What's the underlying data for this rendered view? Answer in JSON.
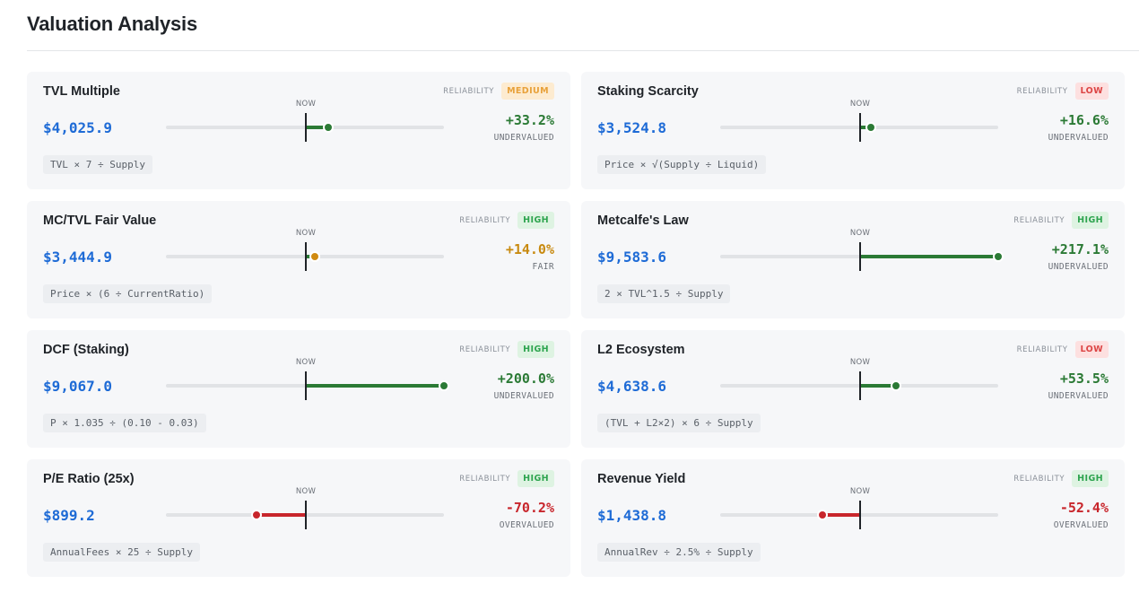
{
  "header": {
    "title": "Valuation Analysis"
  },
  "labels": {
    "reliability": "RELIABILITY",
    "now": "NOW"
  },
  "cards": [
    {
      "title": "TVL Multiple",
      "reliability": "MEDIUM",
      "reliability_level": "medium",
      "price": "$4,025.9",
      "change": "+33.2%",
      "verdict": "UNDERVALUED",
      "tone": "green",
      "change_value": 33.2,
      "formula": "TVL × 7 ÷ Supply"
    },
    {
      "title": "Staking Scarcity",
      "reliability": "LOW",
      "reliability_level": "low",
      "price": "$3,524.8",
      "change": "+16.6%",
      "verdict": "UNDERVALUED",
      "tone": "green",
      "change_value": 16.6,
      "formula": "Price × √(Supply ÷ Liquid)"
    },
    {
      "title": "MC/TVL Fair Value",
      "reliability": "HIGH",
      "reliability_level": "high",
      "price": "$3,444.9",
      "change": "+14.0%",
      "verdict": "FAIR",
      "tone": "amber",
      "change_value": 14.0,
      "formula": "Price × (6 ÷ CurrentRatio)"
    },
    {
      "title": "Metcalfe's Law",
      "reliability": "HIGH",
      "reliability_level": "high",
      "price": "$9,583.6",
      "change": "+217.1%",
      "verdict": "UNDERVALUED",
      "tone": "green",
      "change_value": 217.1,
      "formula": "2 × TVL^1.5 ÷ Supply"
    },
    {
      "title": "DCF (Staking)",
      "reliability": "HIGH",
      "reliability_level": "high",
      "price": "$9,067.0",
      "change": "+200.0%",
      "verdict": "UNDERVALUED",
      "tone": "green",
      "change_value": 200.0,
      "formula": "P × 1.035 ÷ (0.10 - 0.03)"
    },
    {
      "title": "L2 Ecosystem",
      "reliability": "LOW",
      "reliability_level": "low",
      "price": "$4,638.6",
      "change": "+53.5%",
      "verdict": "UNDERVALUED",
      "tone": "green",
      "change_value": 53.5,
      "formula": "(TVL + L2×2) × 6 ÷ Supply"
    },
    {
      "title": "P/E Ratio (25x)",
      "reliability": "HIGH",
      "reliability_level": "high",
      "price": "$899.2",
      "change": "-70.2%",
      "verdict": "OVERVALUED",
      "tone": "red",
      "change_value": -70.2,
      "formula": "AnnualFees × 25 ÷ Supply"
    },
    {
      "title": "Revenue Yield",
      "reliability": "HIGH",
      "reliability_level": "high",
      "price": "$1,438.8",
      "change": "-52.4%",
      "verdict": "OVERVALUED",
      "tone": "red",
      "change_value": -52.4,
      "formula": "AnnualRev ÷ 2.5% ÷ Supply"
    }
  ],
  "colors": {
    "undervalued": "#2b7a35",
    "overvalued": "#c8262c",
    "fair": "#c88a10",
    "price": "#1e6bd6"
  }
}
